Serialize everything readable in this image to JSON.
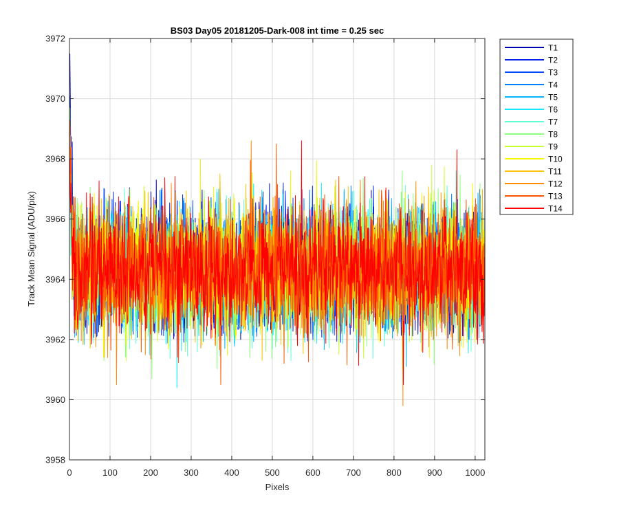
{
  "chart_data": {
    "type": "line",
    "title": "BS03 Day05 20181205-Dark-008 int time = 0.25 sec",
    "xlabel": "Pixels",
    "ylabel": "Track Mean Signal (ADU/pix)",
    "xlim": [
      0,
      1024
    ],
    "ylim": [
      3958,
      3972
    ],
    "xticks": [
      0,
      100,
      200,
      300,
      400,
      500,
      600,
      700,
      800,
      900,
      1000
    ],
    "yticks": [
      3958,
      3960,
      3962,
      3964,
      3966,
      3968,
      3970,
      3972
    ],
    "xtick_labels": [
      "0",
      "100",
      "200",
      "300",
      "400",
      "500",
      "600",
      "700",
      "800",
      "900",
      "1000"
    ],
    "ytick_labels": [
      "3958",
      "3960",
      "3962",
      "3964",
      "3966",
      "3968",
      "3970",
      "3972"
    ],
    "grid": true,
    "legend_position": "outside-top-right",
    "num_points": 1024,
    "series_mean": 3964.3,
    "series_noise_sd": 1.0,
    "series": [
      {
        "name": "T1",
        "color": "#0000b3",
        "start_value": 3971.5,
        "peak_value": 3967.3,
        "min_value": 3962.0
      },
      {
        "name": "T2",
        "color": "#0022e6",
        "start_value": 3970.1,
        "peak_value": 3967.2,
        "min_value": 3961.9
      },
      {
        "name": "T3",
        "color": "#0048ff",
        "start_value": 3968.6,
        "peak_value": 3967.0,
        "min_value": 3962.0
      },
      {
        "name": "T4",
        "color": "#0080ff",
        "start_value": 3968.0,
        "peak_value": 3967.1,
        "min_value": 3962.3
      },
      {
        "name": "T5",
        "color": "#00b4ff",
        "start_value": 3967.6,
        "peak_value": 3967.0,
        "min_value": 3961.1
      },
      {
        "name": "T6",
        "color": "#12e8ff",
        "start_value": 3967.4,
        "peak_value": 3967.2,
        "min_value": 3960.4
      },
      {
        "name": "T7",
        "color": "#5effd2",
        "start_value": 3967.5,
        "peak_value": 3967.6,
        "min_value": 3961.3
      },
      {
        "name": "T8",
        "color": "#8aff7a",
        "start_value": 3969.7,
        "peak_value": 3967.6,
        "min_value": 3960.7
      },
      {
        "name": "T9",
        "color": "#c8ff2e",
        "start_value": 3968.8,
        "peak_value": 3967.8,
        "min_value": 3961.3
      },
      {
        "name": "T10",
        "color": "#f6f600",
        "start_value": 3968.5,
        "peak_value": 3968.0,
        "min_value": 3961.0
      },
      {
        "name": "T11",
        "color": "#ffc000",
        "start_value": 3968.2,
        "peak_value": 3967.5,
        "min_value": 3961.3
      },
      {
        "name": "T12",
        "color": "#ff8c00",
        "start_value": 3968.6,
        "peak_value": 3968.6,
        "min_value": 3959.8
      },
      {
        "name": "T13",
        "color": "#ff5200",
        "start_value": 3969.3,
        "peak_value": 3968.5,
        "min_value": 3960.5
      },
      {
        "name": "T14",
        "color": "#ff0000",
        "start_value": 3968.0,
        "peak_value": 3968.6,
        "min_value": 3960.5
      }
    ]
  }
}
